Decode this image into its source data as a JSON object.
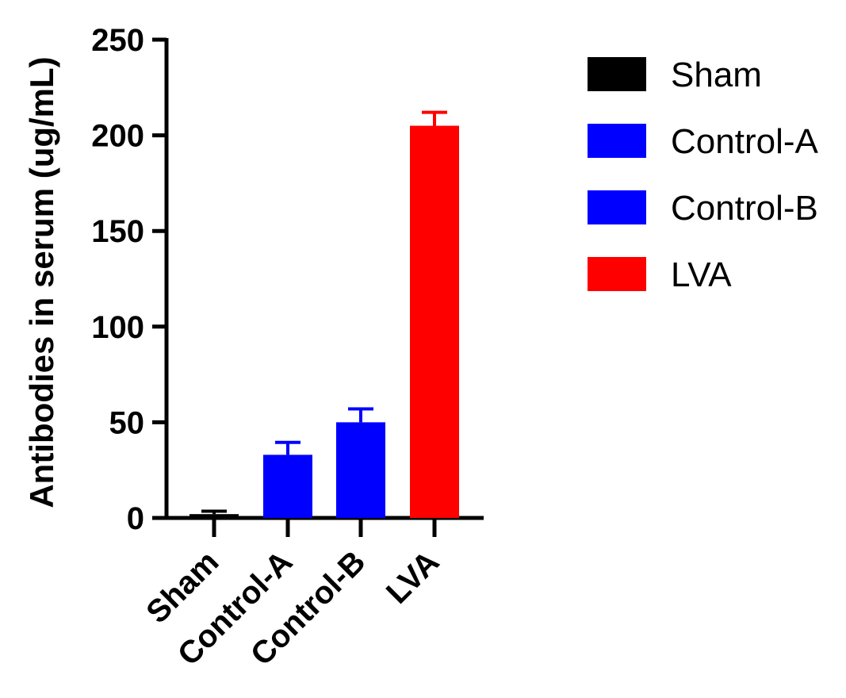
{
  "chart_data": {
    "type": "bar",
    "title": "",
    "xlabel": "",
    "ylabel": "Antibodies in serum (ug/mL)",
    "ylim": [
      0,
      250
    ],
    "yticks": [
      0,
      50,
      100,
      150,
      200,
      250
    ],
    "ytick_labels": [
      "0",
      "50",
      "100",
      "150",
      "200",
      "250"
    ],
    "categories": [
      "Sham",
      "Control-A",
      "Control-B",
      "LVA"
    ],
    "values": [
      2,
      33,
      50,
      205
    ],
    "error_upper": [
      1.5,
      6.5,
      7,
      7
    ],
    "error_lower": [
      1.5,
      6.5,
      7,
      7
    ],
    "colors": [
      "#000000",
      "#0000ff",
      "#0000ff",
      "#ff0000"
    ],
    "legend": {
      "placement": "right",
      "entries": [
        {
          "label": "Sham",
          "color": "#000000"
        },
        {
          "label": "Control-A",
          "color": "#0000ff"
        },
        {
          "label": "Control-B",
          "color": "#0000ff"
        },
        {
          "label": "LVA",
          "color": "#ff0000"
        }
      ]
    },
    "grid": false
  }
}
